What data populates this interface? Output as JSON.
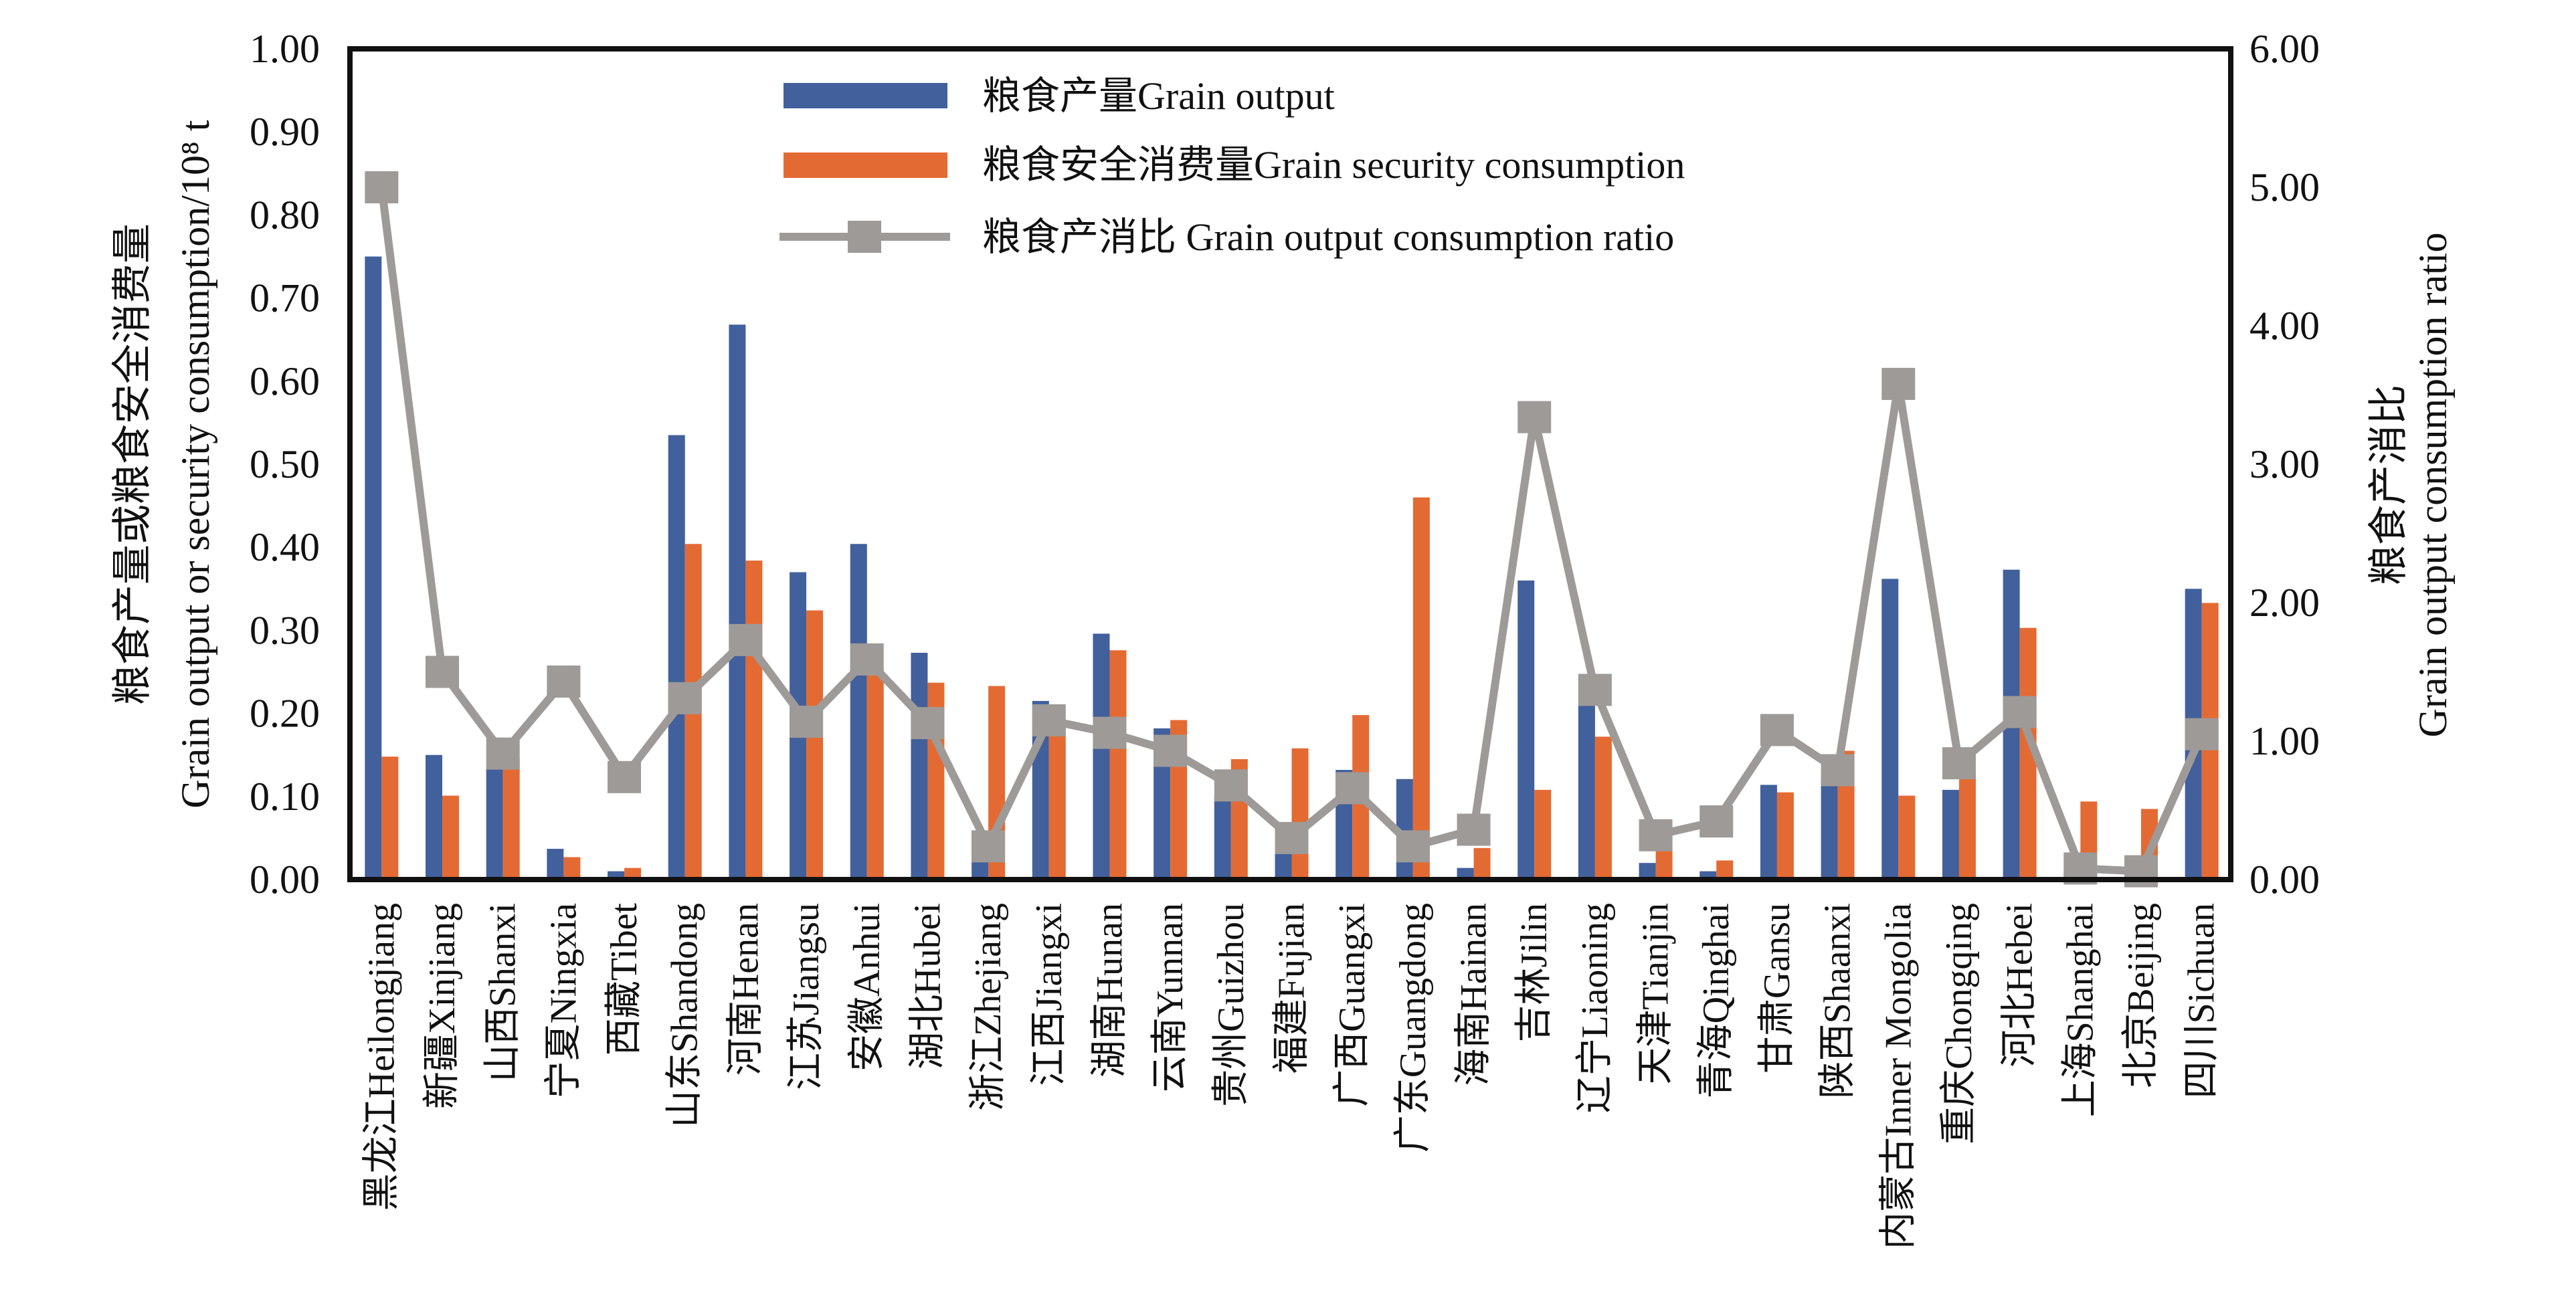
{
  "chart_data": {
    "type": "bar",
    "title": "",
    "categories": [
      "黑龙江Heilongjiang",
      "新疆Xinjiang",
      "山西Shanxi",
      "宁夏Ningxia",
      "西藏Tibet",
      "山东Shandong",
      "河南Henan",
      "江苏Jiangsu",
      "安徽Anhui",
      "湖北Hubei",
      "浙江Zhejiang",
      "江西Jiangxi",
      "湖南Hunan",
      "云南Yunnan",
      "贵州Guizhou",
      "福建Fujian",
      "广西Guangxi",
      "广东Guangdong",
      "海南Hainan",
      "吉林Jilin",
      "辽宁Liaoning",
      "天津Tianjin",
      "青海Qinghai",
      "甘肃Gansu",
      "陕西Shaanxi",
      "内蒙古Inner Mongolia",
      "重庆Chongqing",
      "河北Hebei",
      "上海Shanghai",
      "北京Beijing",
      "四川Sichuan"
    ],
    "series": [
      {
        "name": "粮食产量Grain output",
        "type": "bar",
        "axis": "left",
        "color": "#41609c",
        "values": [
          0.75,
          0.15,
          0.134,
          0.037,
          0.01,
          0.535,
          0.668,
          0.37,
          0.404,
          0.273,
          0.058,
          0.215,
          0.296,
          0.182,
          0.101,
          0.047,
          0.132,
          0.121,
          0.014,
          0.36,
          0.242,
          0.02,
          0.01,
          0.114,
          0.122,
          0.362,
          0.108,
          0.373,
          0.008,
          0.005,
          0.35
        ]
      },
      {
        "name": "粮食安全消费量Grain security consumption",
        "type": "bar",
        "axis": "left",
        "color": "#e46a33",
        "values": [
          0.148,
          0.101,
          0.146,
          0.027,
          0.014,
          0.404,
          0.384,
          0.324,
          0.254,
          0.237,
          0.233,
          0.187,
          0.276,
          0.192,
          0.145,
          0.158,
          0.198,
          0.46,
          0.038,
          0.108,
          0.172,
          0.058,
          0.023,
          0.105,
          0.155,
          0.101,
          0.128,
          0.303,
          0.094,
          0.085,
          0.333
        ]
      },
      {
        "name": "粮食产消比 Grain output consumption ratio",
        "type": "line",
        "axis": "right",
        "color": "#9e9a98",
        "marker": "square",
        "values": [
          5.0,
          1.5,
          0.91,
          1.43,
          0.74,
          1.31,
          1.73,
          1.14,
          1.59,
          1.13,
          0.24,
          1.15,
          1.06,
          0.93,
          0.68,
          0.3,
          0.66,
          0.24,
          0.36,
          3.34,
          1.37,
          0.32,
          0.42,
          1.08,
          0.79,
          3.58,
          0.84,
          1.21,
          0.08,
          0.06,
          1.05
        ]
      }
    ],
    "y_left": {
      "label_cn": "粮食产量或粮食安全消费量",
      "label_en": "Grain output or security consumption/10⁸ t",
      "ylim": [
        0,
        1
      ],
      "ticks": [
        "0.00",
        "0.10",
        "0.20",
        "0.30",
        "0.40",
        "0.50",
        "0.60",
        "0.70",
        "0.80",
        "0.90",
        "1.00"
      ]
    },
    "y_right": {
      "label_cn": "粮食产消比",
      "label_en": "Grain output consumption ratio",
      "ylim": [
        0,
        6
      ],
      "ticks": [
        "0.00",
        "1.00",
        "2.00",
        "3.00",
        "4.00",
        "5.00",
        "6.00"
      ]
    },
    "xlabel": "",
    "grid": false,
    "legend_position": "top-center"
  }
}
